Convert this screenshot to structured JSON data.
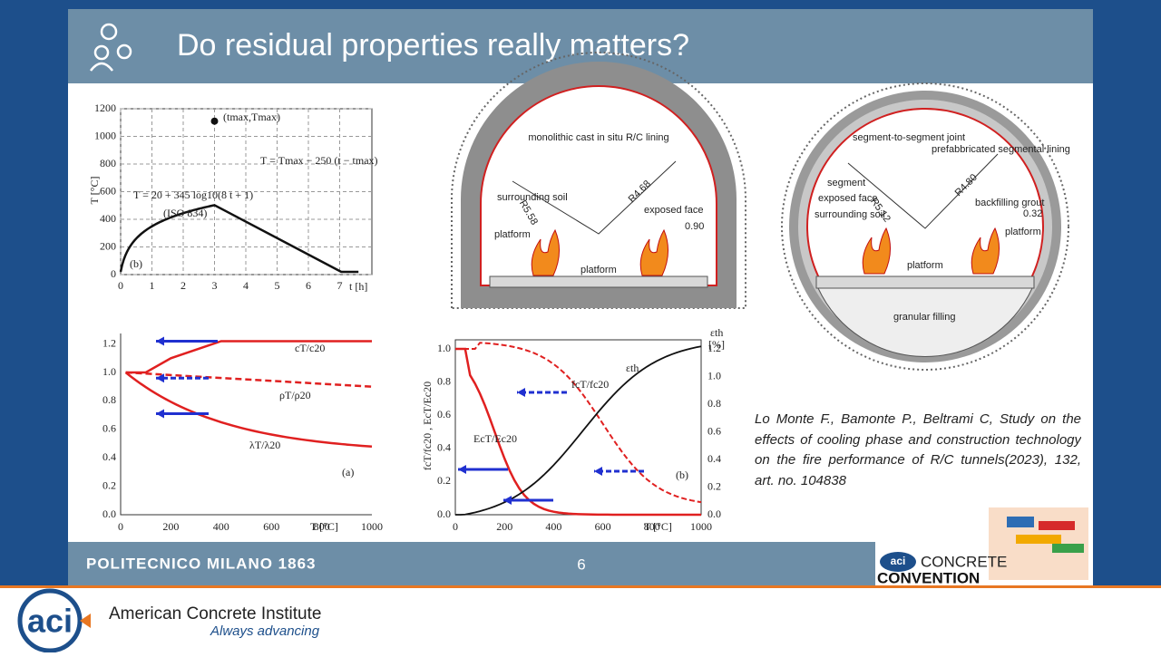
{
  "header": {
    "title": "Do residual properties really matters?"
  },
  "figures": {
    "fire_curve": {
      "y_label": "T [°C]",
      "x_label": "t [h]",
      "y_ticks": [
        "0",
        "200",
        "400",
        "600",
        "800",
        "1000",
        "1200"
      ],
      "x_ticks": [
        "0",
        "1",
        "2",
        "3",
        "4",
        "5",
        "6",
        "7"
      ],
      "peak_label": "(tmax,Tmax)",
      "cooling_label": "T = Tmax − 250 (t − tmax)",
      "heating_label": "T = 20 + 345 log10(8 t + 1)",
      "standard": "(ISO 834)",
      "panel": "(b)"
    },
    "thermal_props": {
      "x_label": "T [°C]",
      "y_ticks": [
        "0.0",
        "0.2",
        "0.4",
        "0.6",
        "0.8",
        "1.0",
        "1.2"
      ],
      "x_ticks": [
        "0",
        "200",
        "400",
        "600",
        "800",
        "1000"
      ],
      "c_label": "cT/c20",
      "rho_label": "ρT/ρ20",
      "lambda_label": "λT/λ20",
      "panel": "(a)"
    },
    "concrete_props": {
      "x_label": "T [°C]",
      "y_label": "fcT/fc20 , EcT/Ec20",
      "y2_label": "εth",
      "y2_unit": "[%]",
      "y_ticks": [
        "0.0",
        "0.2",
        "0.4",
        "0.6",
        "0.8",
        "1.0"
      ],
      "y2_ticks": [
        "0.0",
        "0.2",
        "0.4",
        "0.6",
        "0.8",
        "1.0",
        "1.2"
      ],
      "x_ticks": [
        "0",
        "200",
        "400",
        "600",
        "800",
        "1000"
      ],
      "fc_label": "fcT/fc20",
      "ec_label": "EcT/Ec20",
      "eps_label": "εth",
      "panel": "(b)"
    },
    "monolithic_tunnel": {
      "lining": "monolithic cast in situ R/C lining",
      "soil": "surrounding soil",
      "r_outer": "R5.58",
      "r_inner": "R4.68",
      "exposed": "exposed face",
      "thickness": "0.90",
      "platform_side": "platform",
      "platform": "platform"
    },
    "segmental_tunnel": {
      "joint": "segment-to-segment joint",
      "lining": "prefabbricated segmental lining",
      "segment": "segment",
      "exposed": "exposed face",
      "soil": "surrounding soil",
      "r_outer": "R5.12",
      "r_inner": "R4.80",
      "grout": "backfilling grout",
      "thickness": "0.32",
      "platform_side": "platform",
      "platform": "platform",
      "filling": "granular filling"
    }
  },
  "citation": "Lo Monte F., Bamonte P., Beltrami C, Study on the effects of cooling phase and construction technology on the fire performance of R/C tunnels(2023), 132, art. no. 104838",
  "footer": {
    "institution": "POLITECNICO MILANO 1863",
    "page": "6",
    "event_badge": "aci",
    "event_line1": "CONCRETE",
    "event_line2": "CONVENTION"
  },
  "branding": {
    "logo": "aci",
    "name": "American Concrete Institute",
    "tagline": "Always advancing"
  }
}
